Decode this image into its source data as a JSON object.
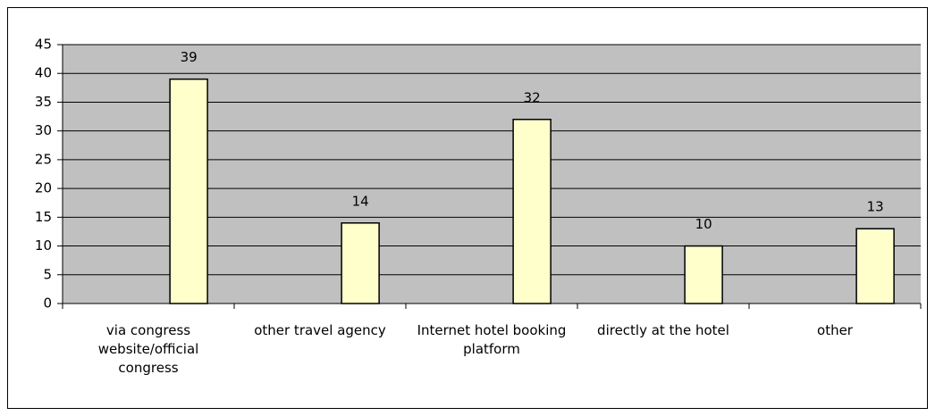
{
  "chart_data": {
    "type": "bar",
    "categories": [
      "via congress website/official congress",
      "other travel agency",
      "Internet hotel booking platform",
      "directly at the hotel",
      "other"
    ],
    "values": [
      39,
      14,
      32,
      10,
      13
    ],
    "color": "#ffffcc",
    "ylim": [
      0,
      45
    ],
    "yticks": [
      0,
      5,
      10,
      15,
      20,
      25,
      30,
      35,
      40,
      45
    ],
    "grid": true
  }
}
